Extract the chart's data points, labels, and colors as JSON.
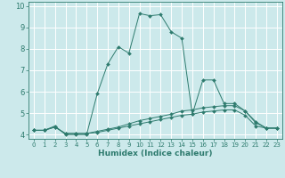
{
  "title": "",
  "xlabel": "Humidex (Indice chaleur)",
  "bg_color": "#cce9eb",
  "grid_color": "#ffffff",
  "line_color": "#2e7b6e",
  "xlim": [
    -0.5,
    23.5
  ],
  "ylim": [
    3.8,
    10.2
  ],
  "yticks": [
    4,
    5,
    6,
    7,
    8,
    9,
    10
  ],
  "xticks": [
    0,
    1,
    2,
    3,
    4,
    5,
    6,
    7,
    8,
    9,
    10,
    11,
    12,
    13,
    14,
    15,
    16,
    17,
    18,
    19,
    20,
    21,
    22,
    23
  ],
  "series": [
    {
      "x": [
        0,
        1,
        2,
        3,
        4,
        5,
        6,
        7,
        8,
        9,
        10,
        11,
        12,
        13,
        14,
        15,
        16,
        17,
        18,
        19,
        20,
        21,
        22,
        23
      ],
      "y": [
        4.2,
        4.2,
        4.4,
        4.0,
        4.0,
        4.0,
        5.9,
        7.3,
        8.1,
        7.8,
        9.65,
        9.55,
        9.6,
        8.8,
        8.5,
        4.95,
        6.55,
        6.55,
        5.45,
        5.45,
        5.1,
        4.55,
        4.3,
        4.3
      ]
    },
    {
      "x": [
        0,
        1,
        2,
        3,
        4,
        5,
        6,
        7,
        8,
        9,
        10,
        11,
        12,
        13,
        14,
        15,
        16,
        17,
        18,
        19,
        20,
        21,
        22,
        23
      ],
      "y": [
        4.2,
        4.2,
        4.35,
        4.05,
        4.05,
        4.05,
        4.15,
        4.25,
        4.35,
        4.5,
        4.65,
        4.75,
        4.85,
        4.95,
        5.1,
        5.15,
        5.25,
        5.3,
        5.35,
        5.35,
        5.1,
        4.6,
        4.3,
        4.3
      ]
    },
    {
      "x": [
        0,
        1,
        2,
        3,
        4,
        5,
        6,
        7,
        8,
        9,
        10,
        11,
        12,
        13,
        14,
        15,
        16,
        17,
        18,
        19,
        20,
        21,
        22,
        23
      ],
      "y": [
        4.2,
        4.2,
        4.35,
        4.05,
        4.05,
        4.05,
        4.1,
        4.2,
        4.3,
        4.4,
        4.5,
        4.6,
        4.7,
        4.8,
        4.9,
        4.95,
        5.05,
        5.1,
        5.15,
        5.15,
        4.9,
        4.4,
        4.3,
        4.3
      ]
    }
  ]
}
